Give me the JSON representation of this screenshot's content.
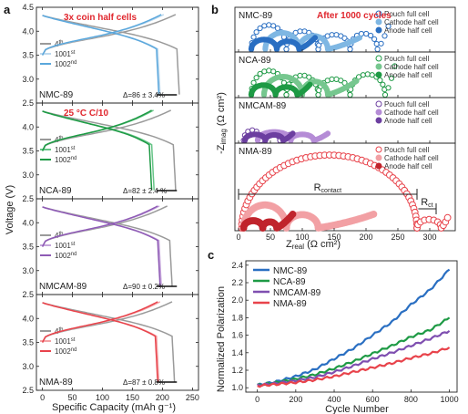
{
  "chart_data": [
    {
      "panel": "a",
      "type": "line",
      "xlabel": "Specific Capacity (mAh g⁻¹)",
      "ylabel": "Voltage (V)",
      "xlim": [
        -10,
        260
      ],
      "ylim": [
        2.5,
        4.5
      ],
      "xticks": [
        "0",
        "50",
        "100",
        "150",
        "200",
        "250"
      ],
      "yticks": [
        "2.5",
        "3.0",
        "3.5",
        "4.0",
        "4.5"
      ],
      "subplots": [
        {
          "name": "NMC-89",
          "color": "#5aa7dc",
          "note": "3x coin half cells",
          "caption": "Δ=86 ± 3.4%",
          "cycles": [
            {
              "label": "4th",
              "color": "#9a9a9a",
              "charge_end": 222,
              "discharge_end": 224
            },
            {
              "label": "1001st",
              "color": "#bcd9ee",
              "charge_end": 202,
              "discharge_end": 192
            },
            {
              "label": "1002nd",
              "color": "#5aa7dc",
              "charge_end": 198,
              "discharge_end": 190
            }
          ]
        },
        {
          "name": "NCA-89",
          "color": "#1e9a45",
          "note": "25 °C  C/10",
          "caption": "Δ=82 ± 2.4 %",
          "cycles": [
            {
              "label": "4th",
              "color": "#9a9a9a",
              "charge_end": 214,
              "discharge_end": 218
            },
            {
              "label": "1001st",
              "color": "#66c487",
              "charge_end": 185,
              "discharge_end": 182
            },
            {
              "label": "1002nd",
              "color": "#1e9a45",
              "charge_end": 182,
              "discharge_end": 178
            }
          ]
        },
        {
          "name": "NMCAM-89",
          "color": "#8e5bb5",
          "note": "",
          "caption": "Δ=90 ± 0.2%",
          "cycles": [
            {
              "label": "4th",
              "color": "#9a9a9a",
              "charge_end": 208,
              "discharge_end": 212
            },
            {
              "label": "1001st",
              "color": "#c6a6dc",
              "charge_end": 195,
              "discharge_end": 194
            },
            {
              "label": "1002nd",
              "color": "#8e5bb5",
              "charge_end": 192,
              "discharge_end": 192
            }
          ]
        },
        {
          "name": "NMA-89",
          "color": "#e8434b",
          "note": "",
          "caption": "Δ=87 ± 0.8%",
          "cycles": [
            {
              "label": "4th",
              "color": "#9a9a9a",
              "charge_end": 216,
              "discharge_end": 216
            },
            {
              "label": "1001st",
              "color": "#f4a3a6",
              "charge_end": 196,
              "discharge_end": 190
            },
            {
              "label": "1002nd",
              "color": "#e8434b",
              "charge_end": 192,
              "discharge_end": 188
            }
          ]
        }
      ]
    },
    {
      "panel": "b",
      "type": "scatter",
      "xlabel": "Z",
      "xlabel_sub": "real",
      "xlabel_unit": " (Ω cm²)",
      "ylabel": "-Z",
      "ylabel_sub": "imag",
      "ylabel_unit": " (Ω cm²)",
      "xlim": [
        0,
        340
      ],
      "xticks": [
        "0",
        "50",
        "100",
        "150",
        "200",
        "250",
        "300"
      ],
      "title_note": "After 1000 cycles",
      "legend": [
        "Pouch full cell",
        "Cathode half cell",
        "Anode half cell"
      ],
      "annotations": {
        "r_contact": "R",
        "r_contact_sub": "contact",
        "r_ct": "R",
        "r_ct_sub": "ct"
      },
      "subplots": [
        {
          "name": "NMC-89",
          "colors": {
            "pouch": "#2a6fc2",
            "cathode": "#7fb7e3",
            "anode": "#2a6fc2"
          },
          "series": [
            {
              "name": "Pouch full cell",
              "arcs": [
                [
                  20,
                  75,
                  40
                ],
                [
                  75,
                  125,
                  30
                ],
                [
                  125,
                  175,
                  24
                ],
                [
                  175,
                  218,
                  26
                ]
              ],
              "tail": [
                218,
                235,
                40
              ]
            },
            {
              "name": "Cathode half cell",
              "arcs": [
                [
                  42,
                  95,
                  27
                ],
                [
                  95,
                  140,
                  22
                ]
              ],
              "tail": [
                140,
                190,
                20
              ]
            },
            {
              "name": "Anode half cell",
              "arcs": [
                [
                  20,
                  60,
                  16
                ],
                [
                  60,
                  95,
                  13
                ]
              ],
              "tail": [
                95,
                120,
                20
              ]
            }
          ]
        },
        {
          "name": "NCA-89",
          "colors": {
            "pouch": "#1e9a45",
            "cathode": "#76c78f",
            "anode": "#1e9a45"
          },
          "series": [
            {
              "name": "Pouch full cell",
              "arcs": [
                [
                  20,
                  75,
                  40
                ],
                [
                  75,
                  125,
                  32
                ],
                [
                  125,
                  175,
                  26
                ],
                [
                  175,
                  230,
                  34
                ]
              ],
              "tail": [
                230,
                245,
                50
              ]
            },
            {
              "name": "Cathode half cell",
              "arcs": [
                [
                  40,
                  100,
                  30
                ],
                [
                  100,
                  140,
                  22
                ]
              ],
              "tail": [
                140,
                185,
                24
              ]
            },
            {
              "name": "Anode half cell",
              "arcs": [
                [
                  20,
                  58,
                  16
                ],
                [
                  58,
                  92,
                  13
                ]
              ],
              "tail": [
                92,
                112,
                18
              ]
            }
          ]
        },
        {
          "name": "NMCAM-89",
          "colors": {
            "pouch": "#6c3fa0",
            "cathode": "#b58cd6",
            "anode": "#6c3fa0"
          },
          "series": [
            {
              "name": "Pouch full cell",
              "arcs": [
                [
                  8,
                  35,
                  17
                ],
                [
                  35,
                  65,
                  13
                ]
              ],
              "tail": [
                65,
                80,
                10
              ]
            },
            {
              "name": "Cathode half cell",
              "arcs": [
                [
                  30,
                  82,
                  14
                ],
                [
                  82,
                  118,
                  10
                ]
              ],
              "tail": [
                118,
                140,
                12
              ]
            },
            {
              "name": "Anode half cell",
              "arcs": [
                [
                  10,
                  42,
                  10
                ],
                [
                  42,
                  70,
                  9
                ]
              ],
              "tail": [
                70,
                85,
                12
              ]
            }
          ]
        },
        {
          "name": "NMA-89",
          "colors": {
            "pouch": "#e8434b",
            "cathode": "#f2a0a4",
            "anode": "#c0242c"
          },
          "series": [
            {
              "name": "Pouch full cell",
              "arcs": [
                [
                  5,
                  280,
                  122
                ],
                [
                  280,
                  318,
                  14
                ]
              ],
              "tail": [
                318,
                328,
                18
              ]
            },
            {
              "name": "Cathode half cell",
              "arcs": [
                [
                  8,
                  75,
                  38
                ],
                [
                  75,
                  125,
                  22
                ]
              ],
              "tail": [
                125,
                212,
                24
              ]
            },
            {
              "name": "Anode half cell",
              "arcs": [
                [
                  8,
                  38,
                  12
                ],
                [
                  38,
                  60,
                  10
                ]
              ],
              "tail": [
                60,
                85,
                24
              ]
            }
          ]
        }
      ]
    },
    {
      "panel": "c",
      "type": "line",
      "xlabel": "Cycle Number",
      "ylabel": "Normalized Polarization",
      "xlim": [
        -60,
        1040
      ],
      "ylim": [
        0.95,
        2.45
      ],
      "xticks": [
        "0",
        "200",
        "400",
        "600",
        "800",
        "1000"
      ],
      "yticks": [
        "1.0",
        "1.2",
        "1.4",
        "1.6",
        "1.8",
        "2.0",
        "2.2",
        "2.4"
      ],
      "series": [
        {
          "name": "NMC-89",
          "color": "#2a6fc2",
          "x": [
            0,
            100,
            200,
            300,
            400,
            500,
            600,
            700,
            800,
            900,
            1000
          ],
          "y": [
            1.03,
            1.07,
            1.13,
            1.21,
            1.33,
            1.45,
            1.6,
            1.75,
            1.95,
            2.12,
            2.35
          ]
        },
        {
          "name": "NCA-89",
          "color": "#1e9a45",
          "x": [
            0,
            100,
            200,
            300,
            400,
            500,
            600,
            700,
            800,
            900,
            1000
          ],
          "y": [
            1.03,
            1.06,
            1.1,
            1.15,
            1.22,
            1.3,
            1.39,
            1.48,
            1.58,
            1.66,
            1.8
          ]
        },
        {
          "name": "NMCAM-89",
          "color": "#7f4fb0",
          "x": [
            0,
            100,
            200,
            300,
            400,
            500,
            600,
            700,
            800,
            900,
            1000
          ],
          "y": [
            1.03,
            1.05,
            1.08,
            1.12,
            1.18,
            1.25,
            1.33,
            1.4,
            1.48,
            1.56,
            1.65
          ]
        },
        {
          "name": "NMA-89",
          "color": "#e8434b",
          "x": [
            0,
            100,
            200,
            300,
            400,
            500,
            600,
            700,
            800,
            900,
            1000
          ],
          "y": [
            1.02,
            1.04,
            1.06,
            1.09,
            1.13,
            1.18,
            1.23,
            1.28,
            1.34,
            1.39,
            1.46
          ]
        }
      ]
    }
  ]
}
